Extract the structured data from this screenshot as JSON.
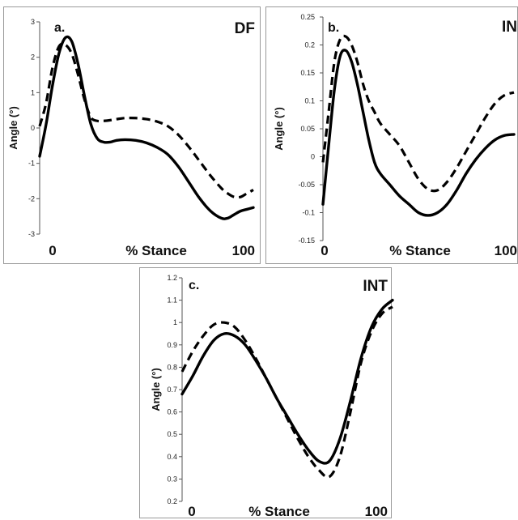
{
  "figure": {
    "panels": [
      {
        "id": "a",
        "panel_label": "a.",
        "title": "DF",
        "ylabel": "Angle (°)",
        "xlabel": "% Stance",
        "x_start_label": "0",
        "x_end_label": "100"
      },
      {
        "id": "b",
        "panel_label": "b.",
        "title": "IN",
        "ylabel": "Angle (°)",
        "xlabel": "% Stance",
        "x_start_label": "0",
        "x_end_label": "100"
      },
      {
        "id": "c",
        "panel_label": "c.",
        "title": "INT",
        "ylabel": "Angle (°)",
        "xlabel": "% Stance",
        "x_start_label": "0",
        "x_end_label": "100"
      }
    ]
  },
  "chart_data": [
    {
      "type": "line",
      "title": "DF",
      "panel_label": "a.",
      "xlabel": "% Stance",
      "ylabel": "Angle (°)",
      "xlim": [
        0,
        100
      ],
      "ylim": [
        -3,
        3
      ],
      "yticks": [
        "3",
        "2",
        "1",
        "0",
        "-1",
        "-2",
        "-3"
      ],
      "series": [
        {
          "style": "solid",
          "color": "#000000",
          "x": [
            0,
            3,
            6,
            9,
            12,
            15,
            18,
            21,
            24,
            27,
            30,
            33,
            36,
            40,
            45,
            50,
            55,
            60,
            65,
            70,
            75,
            80,
            85,
            88,
            91,
            94,
            97,
            100
          ],
          "y": [
            -0.8,
            0.1,
            1.2,
            2.1,
            2.55,
            2.45,
            1.8,
            0.9,
            0.1,
            -0.3,
            -0.4,
            -0.4,
            -0.35,
            -0.33,
            -0.35,
            -0.42,
            -0.55,
            -0.75,
            -1.1,
            -1.55,
            -2.0,
            -2.35,
            -2.55,
            -2.55,
            -2.45,
            -2.35,
            -2.3,
            -2.25
          ]
        },
        {
          "style": "dashed",
          "color": "#000000",
          "x": [
            0,
            3,
            6,
            9,
            12,
            15,
            18,
            21,
            24,
            27,
            30,
            33,
            36,
            40,
            45,
            50,
            55,
            60,
            65,
            70,
            75,
            80,
            85,
            88,
            91,
            94,
            97,
            100
          ],
          "y": [
            0.05,
            0.7,
            1.7,
            2.3,
            2.35,
            2.1,
            1.5,
            0.8,
            0.3,
            0.2,
            0.2,
            0.22,
            0.25,
            0.28,
            0.28,
            0.25,
            0.18,
            0.05,
            -0.2,
            -0.55,
            -0.95,
            -1.35,
            -1.7,
            -1.85,
            -1.95,
            -1.95,
            -1.85,
            -1.75
          ]
        }
      ]
    },
    {
      "type": "line",
      "title": "IN",
      "panel_label": "b.",
      "xlabel": "% Stance",
      "ylabel": "Angle (°)",
      "xlim": [
        0,
        100
      ],
      "ylim": [
        -0.15,
        0.25
      ],
      "yticks": [
        "0.25",
        "0.2",
        "0.15",
        "0.1",
        "0.05",
        "0",
        "-0.05",
        "-0.1",
        "-0.15"
      ],
      "series": [
        {
          "style": "solid",
          "color": "#000000",
          "x": [
            0,
            3,
            6,
            9,
            12,
            15,
            18,
            21,
            24,
            27,
            30,
            35,
            40,
            45,
            50,
            55,
            60,
            65,
            70,
            75,
            80,
            85,
            90,
            95,
            100
          ],
          "y": [
            -0.085,
            0.02,
            0.12,
            0.18,
            0.19,
            0.17,
            0.13,
            0.08,
            0.03,
            -0.01,
            -0.03,
            -0.05,
            -0.07,
            -0.085,
            -0.1,
            -0.105,
            -0.1,
            -0.085,
            -0.06,
            -0.03,
            -0.005,
            0.015,
            0.03,
            0.038,
            0.04
          ]
        },
        {
          "style": "dashed",
          "color": "#000000",
          "x": [
            0,
            3,
            6,
            9,
            12,
            15,
            18,
            21,
            24,
            27,
            30,
            35,
            40,
            45,
            50,
            55,
            60,
            65,
            70,
            75,
            80,
            85,
            90,
            95,
            100
          ],
          "y": [
            -0.01,
            0.08,
            0.17,
            0.21,
            0.215,
            0.2,
            0.17,
            0.13,
            0.1,
            0.08,
            0.06,
            0.04,
            0.02,
            -0.01,
            -0.04,
            -0.058,
            -0.06,
            -0.045,
            -0.02,
            0.01,
            0.04,
            0.07,
            0.095,
            0.11,
            0.115
          ]
        }
      ]
    },
    {
      "type": "line",
      "title": "INT",
      "panel_label": "c.",
      "xlabel": "% Stance",
      "ylabel": "Angle (°)",
      "xlim": [
        0,
        100
      ],
      "ylim": [
        0.2,
        1.2
      ],
      "yticks": [
        "1.2",
        "1.1",
        "1",
        "0.9",
        "0.8",
        "0.7",
        "0.6",
        "0.5",
        "0.4",
        "0.3",
        "0.2"
      ],
      "series": [
        {
          "style": "solid",
          "color": "#000000",
          "x": [
            0,
            5,
            10,
            15,
            20,
            25,
            30,
            35,
            40,
            45,
            50,
            55,
            60,
            65,
            70,
            75,
            80,
            85,
            90,
            95,
            100
          ],
          "y": [
            0.68,
            0.76,
            0.85,
            0.92,
            0.95,
            0.94,
            0.9,
            0.83,
            0.75,
            0.66,
            0.58,
            0.5,
            0.43,
            0.38,
            0.38,
            0.48,
            0.65,
            0.84,
            0.98,
            1.06,
            1.1
          ]
        },
        {
          "style": "dashed",
          "color": "#000000",
          "x": [
            0,
            5,
            10,
            15,
            20,
            25,
            30,
            35,
            40,
            45,
            50,
            55,
            60,
            65,
            70,
            75,
            80,
            85,
            90,
            95,
            100
          ],
          "y": [
            0.78,
            0.87,
            0.94,
            0.99,
            1.0,
            0.98,
            0.92,
            0.84,
            0.75,
            0.66,
            0.57,
            0.48,
            0.4,
            0.34,
            0.31,
            0.4,
            0.6,
            0.82,
            0.96,
            1.04,
            1.07
          ]
        }
      ]
    }
  ]
}
